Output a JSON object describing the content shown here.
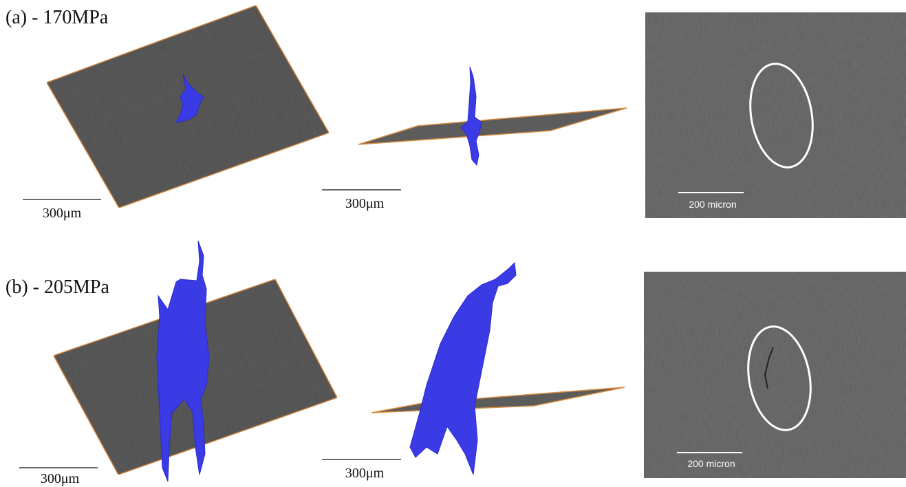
{
  "rows": [
    {
      "label": "(a) - 170MPa",
      "panels": [
        {
          "scale_bar": "300μm"
        },
        {
          "scale_bar": "300μm"
        },
        {
          "scale_bar": "200 micron"
        }
      ]
    },
    {
      "label": "(b) - 205MPa",
      "panels": [
        {
          "scale_bar": "300μm"
        },
        {
          "scale_bar": "300μm"
        },
        {
          "scale_bar": "200 micron"
        }
      ]
    }
  ]
}
